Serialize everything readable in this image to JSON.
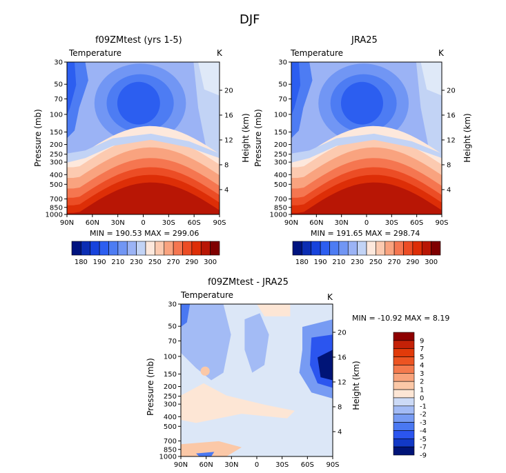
{
  "title": "DJF",
  "colors": {
    "abs": [
      "#00137f",
      "#0b2db3",
      "#1743dc",
      "#2c5ef0",
      "#4d7cf3",
      "#7196f4",
      "#9bb3f5",
      "#c2d3f5",
      "#fde8dc",
      "#fccab0",
      "#f9a37f",
      "#f57650",
      "#ec4d25",
      "#dd2e07",
      "#b81605",
      "#7f0000"
    ],
    "diff": [
      "#001477",
      "#1239c6",
      "#2b55ef",
      "#4a78f2",
      "#779bf3",
      "#a3bbf5",
      "#ccdaf6",
      "#fde6d5",
      "#fbc8a7",
      "#f8a37b",
      "#f47a4d",
      "#ec5422",
      "#e13a0a",
      "#c42107",
      "#8e0000"
    ]
  },
  "panels": [
    {
      "title": "f09ZMtest (yrs 1-5)",
      "left_label": "Temperature",
      "right_label": "K",
      "ylabel": "Pressure (mb)",
      "ylabel_right": "Height (km)",
      "stats_text": "MIN = 190.53   MAX = 299.06"
    },
    {
      "title": "JRA25",
      "left_label": "Temperature",
      "right_label": "K",
      "ylabel": "Pressure (mb)",
      "ylabel_right": "Height (km)",
      "stats_text": "MIN = 191.65   MAX = 298.74"
    },
    {
      "title": "f09ZMtest - JRA25",
      "left_label": "Temperature",
      "right_label": "K",
      "ylabel": "Pressure (mb)",
      "ylabel_right": "Height (km)",
      "stats_text": "MIN = -10.92   MAX =   8.19"
    }
  ],
  "chart_data": [
    {
      "type": "heatmap",
      "title": "f09ZMtest (yrs 1-5)",
      "variable": "Temperature",
      "units": "K",
      "xlabel": "",
      "ylabel": "Pressure (mb)",
      "ylabel_right": "Height (km)",
      "x_ticks": [
        "90N",
        "60N",
        "30N",
        "0",
        "30S",
        "60S",
        "90S"
      ],
      "y_ticks": [
        "30",
        "50",
        "70",
        "100",
        "150",
        "200",
        "250",
        "300",
        "400",
        "500",
        "700",
        "850",
        "1000"
      ],
      "y_right_ticks": [
        "20",
        "16",
        "12",
        "8",
        "4"
      ],
      "min": 190.53,
      "max": 299.06,
      "legend_levels": [
        "180",
        "190",
        "210",
        "230",
        "250",
        "270",
        "290",
        "300"
      ],
      "legend_placement": "bottom"
    },
    {
      "type": "heatmap",
      "title": "JRA25",
      "variable": "Temperature",
      "units": "K",
      "xlabel": "",
      "ylabel": "Pressure (mb)",
      "ylabel_right": "Height (km)",
      "x_ticks": [
        "90N",
        "60N",
        "30N",
        "0",
        "30S",
        "60S",
        "90S"
      ],
      "y_ticks": [
        "30",
        "50",
        "70",
        "100",
        "150",
        "200",
        "250",
        "300",
        "400",
        "500",
        "700",
        "850",
        "1000"
      ],
      "y_right_ticks": [
        "20",
        "16",
        "12",
        "8",
        "4"
      ],
      "min": 191.65,
      "max": 298.74,
      "legend_levels": [
        "180",
        "190",
        "210",
        "230",
        "250",
        "270",
        "290",
        "300"
      ],
      "legend_placement": "bottom"
    },
    {
      "type": "heatmap",
      "title": "f09ZMtest - JRA25",
      "variable": "Temperature",
      "units": "K",
      "xlabel": "",
      "ylabel": "Pressure (mb)",
      "ylabel_right": "Height (km)",
      "x_ticks": [
        "90N",
        "60N",
        "30N",
        "0",
        "30S",
        "60S",
        "90S"
      ],
      "y_ticks": [
        "30",
        "50",
        "70",
        "100",
        "150",
        "200",
        "250",
        "300",
        "400",
        "500",
        "700",
        "850",
        "1000"
      ],
      "y_right_ticks": [
        "20",
        "16",
        "12",
        "8",
        "4"
      ],
      "min": -10.92,
      "max": 8.19,
      "legend_levels": [
        "9",
        "7",
        "5",
        "4",
        "3",
        "2",
        "1",
        "0",
        "-1",
        "-2",
        "-3",
        "-4",
        "-5",
        "-7",
        "-9"
      ],
      "legend_placement": "right"
    }
  ]
}
